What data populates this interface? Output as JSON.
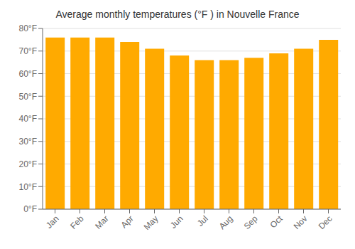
{
  "chart_data": {
    "type": "bar",
    "title": "Average monthly temperatures (°F ) in Nouvelle France",
    "categories": [
      "Jan",
      "Feb",
      "Mar",
      "Apr",
      "May",
      "Jun",
      "Jul",
      "Aug",
      "Sep",
      "Oct",
      "Nov",
      "Dec"
    ],
    "values": [
      76,
      76,
      76,
      74,
      71,
      68,
      66,
      66,
      67,
      69,
      71,
      75
    ],
    "color": "#FFAA00",
    "ylim": [
      0,
      80
    ],
    "yticks": [
      {
        "value": 0,
        "label": "0°F"
      },
      {
        "value": 10,
        "label": "10°F"
      },
      {
        "value": 20,
        "label": "20°F"
      },
      {
        "value": 30,
        "label": "30°F"
      },
      {
        "value": 40,
        "label": "40°F"
      },
      {
        "value": 50,
        "label": "50°F"
      },
      {
        "value": 60,
        "label": "60°F"
      },
      {
        "value": 70,
        "label": "70°F"
      },
      {
        "value": 80,
        "label": "80°F"
      }
    ],
    "grid": true
  }
}
